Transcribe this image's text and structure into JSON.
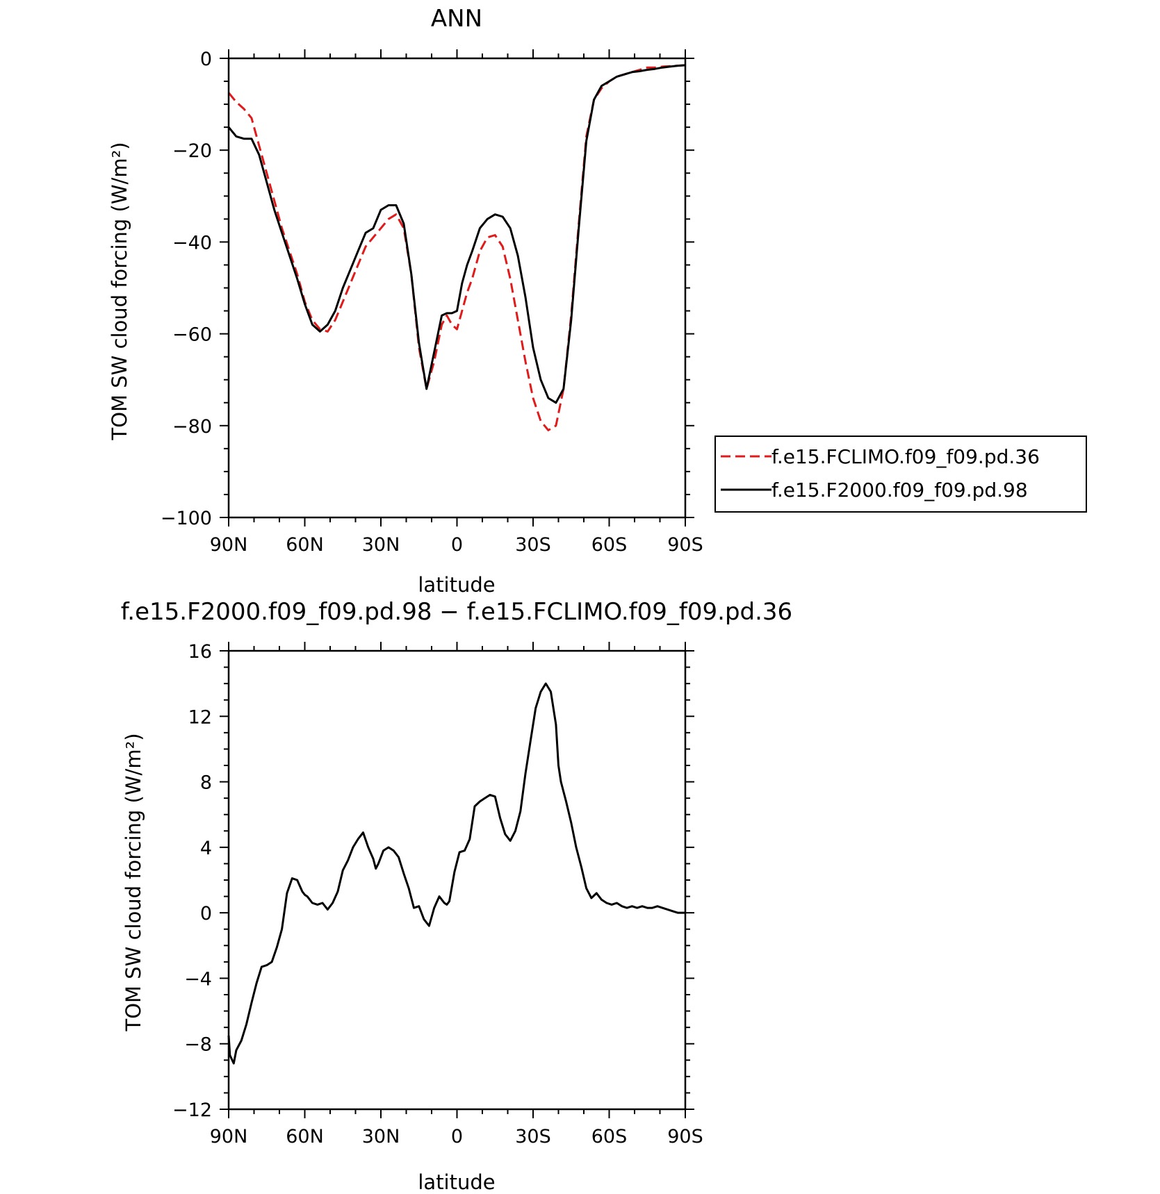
{
  "chart_data": [
    {
      "type": "line",
      "title": "ANN",
      "xlabel": "latitude",
      "ylabel": "TOM SW cloud forcing (W/m²)",
      "xlim": [
        90,
        -90
      ],
      "ylim": [
        -100,
        0
      ],
      "xticks": [
        90,
        60,
        30,
        0,
        -30,
        -60,
        -90
      ],
      "xticklabels": [
        "90N",
        "60N",
        "30N",
        "0",
        "30S",
        "60S",
        "90S"
      ],
      "yticks": [
        0,
        -20,
        -40,
        -60,
        -80,
        -100
      ],
      "yticklabels": [
        "0",
        "−20",
        "−40",
        "−60",
        "−80",
        "−100"
      ],
      "legend_position": "right",
      "x": [
        90,
        87,
        84,
        81,
        78,
        75,
        72,
        69,
        66,
        63,
        60,
        57,
        54,
        51,
        48,
        45,
        42,
        39,
        36,
        33,
        30,
        27,
        24,
        21,
        18,
        15,
        12,
        9,
        6,
        4,
        2,
        0,
        -2,
        -4,
        -6,
        -9,
        -12,
        -15,
        -18,
        -21,
        -24,
        -27,
        -30,
        -33,
        -36,
        -39,
        -42,
        -45,
        -48,
        -51,
        -54,
        -57,
        -60,
        -63,
        -66,
        -69,
        -72,
        -75,
        -78,
        -81,
        -84,
        -87,
        -90
      ],
      "series": [
        {
          "name": "f.e15.FCLIMO.f09_f09.pd.36",
          "color": "#e01b1b",
          "dash": "dashed",
          "values": [
            -7.5,
            -9.5,
            -11,
            -13,
            -19,
            -25,
            -31,
            -37,
            -42,
            -47,
            -53,
            -57,
            -59,
            -59.5,
            -57,
            -53,
            -49,
            -45,
            -41,
            -39,
            -37,
            -35,
            -34,
            -37,
            -47,
            -63,
            -72,
            -66,
            -58,
            -56,
            -58,
            -59,
            -55,
            -51,
            -48,
            -42,
            -39,
            -38.5,
            -41,
            -48,
            -57,
            -66,
            -74,
            -79,
            -81,
            -80,
            -72,
            -56,
            -36,
            -17,
            -9,
            -6.5,
            -5,
            -4,
            -3.5,
            -3,
            -2.5,
            -2,
            -2,
            -1.8,
            -1.7,
            -1.6,
            -1.5
          ]
        },
        {
          "name": "f.e15.F2000.f09_f09.pd.98",
          "color": "#000000",
          "dash": "solid",
          "values": [
            -15,
            -17,
            -17.5,
            -17.5,
            -21,
            -27,
            -33,
            -38,
            -43,
            -48,
            -53.5,
            -58,
            -59.5,
            -58,
            -55,
            -50,
            -46,
            -42,
            -38,
            -37,
            -33,
            -32,
            -32,
            -36,
            -47,
            -62,
            -72,
            -64,
            -56,
            -55.5,
            -55.5,
            -55,
            -49,
            -45,
            -42,
            -37,
            -35,
            -34,
            -34.5,
            -37,
            -43,
            -52,
            -63,
            -70,
            -74,
            -75,
            -72,
            -57,
            -37,
            -18,
            -9,
            -6,
            -5,
            -4,
            -3.5,
            -3,
            -2.8,
            -2.5,
            -2.3,
            -2,
            -1.8,
            -1.6,
            -1.5
          ]
        }
      ]
    },
    {
      "type": "line",
      "title": "f.e15.F2000.f09_f09.pd.98 − f.e15.FCLIMO.f09_f09.pd.36",
      "xlabel": "latitude",
      "ylabel": "TOM SW cloud forcing (W/m²)",
      "xlim": [
        90,
        -90
      ],
      "ylim": [
        -12,
        16
      ],
      "xticks": [
        90,
        60,
        30,
        0,
        -30,
        -60,
        -90
      ],
      "xticklabels": [
        "90N",
        "60N",
        "30N",
        "0",
        "30S",
        "60S",
        "90S"
      ],
      "yticks": [
        16,
        12,
        8,
        4,
        0,
        -4,
        -8,
        -12
      ],
      "yticklabels": [
        "16",
        "12",
        "8",
        "4",
        "0",
        "−4",
        "−8",
        "−12"
      ],
      "x": [
        90,
        89.5,
        88,
        87,
        85,
        83,
        81,
        79,
        77,
        75,
        73,
        71,
        69,
        67,
        65,
        63,
        61,
        60,
        59,
        57,
        55,
        53,
        51,
        49,
        47,
        45,
        43,
        41,
        39,
        37,
        35,
        33,
        32,
        31,
        29,
        27,
        25,
        23,
        21,
        19,
        17,
        15,
        13,
        11,
        9,
        7,
        5,
        4,
        3,
        1,
        -1,
        -3,
        -5,
        -7,
        -9,
        -11,
        -13,
        -15,
        -17,
        -19,
        -21,
        -23,
        -25,
        -27,
        -29,
        -31,
        -33,
        -35,
        -37,
        -39,
        -40,
        -41,
        -43,
        -45,
        -47,
        -49,
        -51,
        -53,
        -55,
        -57,
        -59,
        -61,
        -63,
        -65,
        -67,
        -69,
        -71,
        -73,
        -75,
        -77,
        -79,
        -81,
        -83,
        -85,
        -87,
        -89,
        -90
      ],
      "series": [
        {
          "name": "",
          "color": "#000000",
          "dash": "solid",
          "values": [
            -7.5,
            -8.7,
            -9.2,
            -8.4,
            -7.8,
            -6.8,
            -5.5,
            -4.3,
            -3.3,
            -3.2,
            -3.0,
            -2.1,
            -1.0,
            1.2,
            2.1,
            2.0,
            1.3,
            1.1,
            1.0,
            0.6,
            0.5,
            0.6,
            0.2,
            0.6,
            1.3,
            2.6,
            3.2,
            4.0,
            4.5,
            4.9,
            4.0,
            3.3,
            2.7,
            3.0,
            3.8,
            4.0,
            3.8,
            3.4,
            2.4,
            1.5,
            0.3,
            0.4,
            -0.4,
            -0.8,
            0.3,
            1.0,
            0.6,
            0.5,
            0.7,
            2.5,
            3.7,
            3.8,
            4.5,
            6.5,
            6.8,
            7.0,
            7.2,
            7.1,
            5.8,
            4.8,
            4.4,
            5.0,
            6.2,
            8.5,
            10.5,
            12.5,
            13.5,
            14.0,
            13.5,
            11.5,
            9.0,
            8.0,
            6.8,
            5.5,
            4.0,
            2.8,
            1.5,
            0.9,
            1.2,
            0.8,
            0.6,
            0.5,
            0.6,
            0.4,
            0.3,
            0.4,
            0.3,
            0.4,
            0.3,
            0.3,
            0.4,
            0.3,
            0.2,
            0.1,
            0.0,
            0.0,
            0.0
          ]
        }
      ]
    }
  ]
}
